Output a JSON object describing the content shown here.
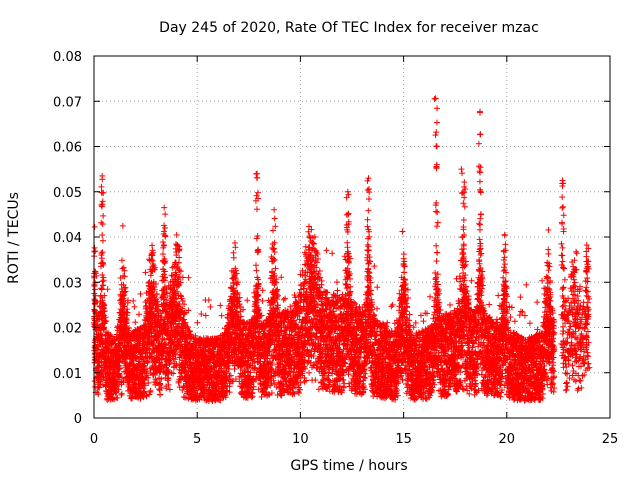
{
  "chart_data": {
    "type": "scatter",
    "title": "Day 245 of 2020, Rate Of TEC Index for receiver mzac",
    "xlabel": "GPS time / hours",
    "ylabel": "ROTI / TECUs",
    "xlim": [
      0,
      25
    ],
    "ylim": [
      0,
      0.08
    ],
    "xticks": [
      "0",
      "5",
      "10",
      "15",
      "20",
      "25"
    ],
    "xtick_values": [
      0,
      5,
      10,
      15,
      20,
      25
    ],
    "yticks": [
      "0",
      "0.01",
      "0.02",
      "0.03",
      "0.04",
      "0.05",
      "0.06",
      "0.07",
      "0.08"
    ],
    "ytick_values": [
      0,
      0.01,
      0.02,
      0.03,
      0.04,
      0.05,
      0.06,
      0.07,
      0.08
    ],
    "grid": true,
    "marker": "+",
    "color": "#ff0000",
    "series": [
      {
        "name": "ROTI",
        "sampling": "dense cloud, approx. 0.0025 h spacing, ~9600 points",
        "baseline_profile": [
          [
            0,
            0.012
          ],
          [
            1,
            0.01
          ],
          [
            2,
            0.011
          ],
          [
            3,
            0.012
          ],
          [
            4,
            0.013
          ],
          [
            5,
            0.01
          ],
          [
            6,
            0.01
          ],
          [
            7,
            0.012
          ],
          [
            8,
            0.012
          ],
          [
            9,
            0.013
          ],
          [
            10,
            0.015
          ],
          [
            11,
            0.016
          ],
          [
            12,
            0.015
          ],
          [
            13,
            0.014
          ],
          [
            14,
            0.012
          ],
          [
            15,
            0.01
          ],
          [
            16,
            0.011
          ],
          [
            17,
            0.013
          ],
          [
            18,
            0.014
          ],
          [
            19,
            0.013
          ],
          [
            20,
            0.011
          ],
          [
            21,
            0.01
          ],
          [
            22,
            0.011
          ],
          [
            22.3,
            0.012
          ]
        ],
        "spread_fraction": 0.7,
        "bursts": [
          {
            "x": 0.0,
            "w": 0.2,
            "ymax": 0.046
          },
          {
            "x": 0.4,
            "w": 0.2,
            "ymax": 0.054
          },
          {
            "x": 1.4,
            "w": 0.3,
            "ymax": 0.028
          },
          {
            "x": 2.8,
            "w": 0.4,
            "ymax": 0.033
          },
          {
            "x": 3.4,
            "w": 0.2,
            "ymax": 0.046
          },
          {
            "x": 4.0,
            "w": 0.5,
            "ymax": 0.039
          },
          {
            "x": 6.8,
            "w": 0.4,
            "ymax": 0.031
          },
          {
            "x": 7.9,
            "w": 0.2,
            "ymax": 0.054
          },
          {
            "x": 8.7,
            "w": 0.3,
            "ymax": 0.047
          },
          {
            "x": 10.5,
            "w": 0.6,
            "ymax": 0.038
          },
          {
            "x": 12.3,
            "w": 0.2,
            "ymax": 0.05
          },
          {
            "x": 13.3,
            "w": 0.2,
            "ymax": 0.053
          },
          {
            "x": 15.0,
            "w": 0.4,
            "ymax": 0.034
          },
          {
            "x": 16.6,
            "w": 0.2,
            "ymax": 0.071
          },
          {
            "x": 17.9,
            "w": 0.3,
            "ymax": 0.055
          },
          {
            "x": 18.7,
            "w": 0.2,
            "ymax": 0.068
          },
          {
            "x": 19.9,
            "w": 0.2,
            "ymax": 0.041
          },
          {
            "x": 22.0,
            "w": 0.3,
            "ymax": 0.022
          },
          {
            "x": 22.7,
            "w": 0.2,
            "ymax": 0.052
          },
          {
            "x": 23.3,
            "w": 0.4,
            "ymax": 0.033
          },
          {
            "x": 23.9,
            "w": 0.2,
            "ymax": 0.039
          }
        ],
        "gaps": [
          [
            22.3,
            22.7
          ]
        ],
        "notable_points": [
          {
            "x": 16.5,
            "y": 0.0705
          },
          {
            "x": 18.7,
            "y": 0.0675
          },
          {
            "x": 17.8,
            "y": 0.055
          },
          {
            "x": 0.4,
            "y": 0.0535
          },
          {
            "x": 7.9,
            "y": 0.054
          },
          {
            "x": 13.3,
            "y": 0.053
          },
          {
            "x": 22.7,
            "y": 0.0525
          },
          {
            "x": 3.4,
            "y": 0.0465
          },
          {
            "x": 12.3,
            "y": 0.05
          },
          {
            "x": 19.9,
            "y": 0.0405
          }
        ]
      }
    ]
  }
}
